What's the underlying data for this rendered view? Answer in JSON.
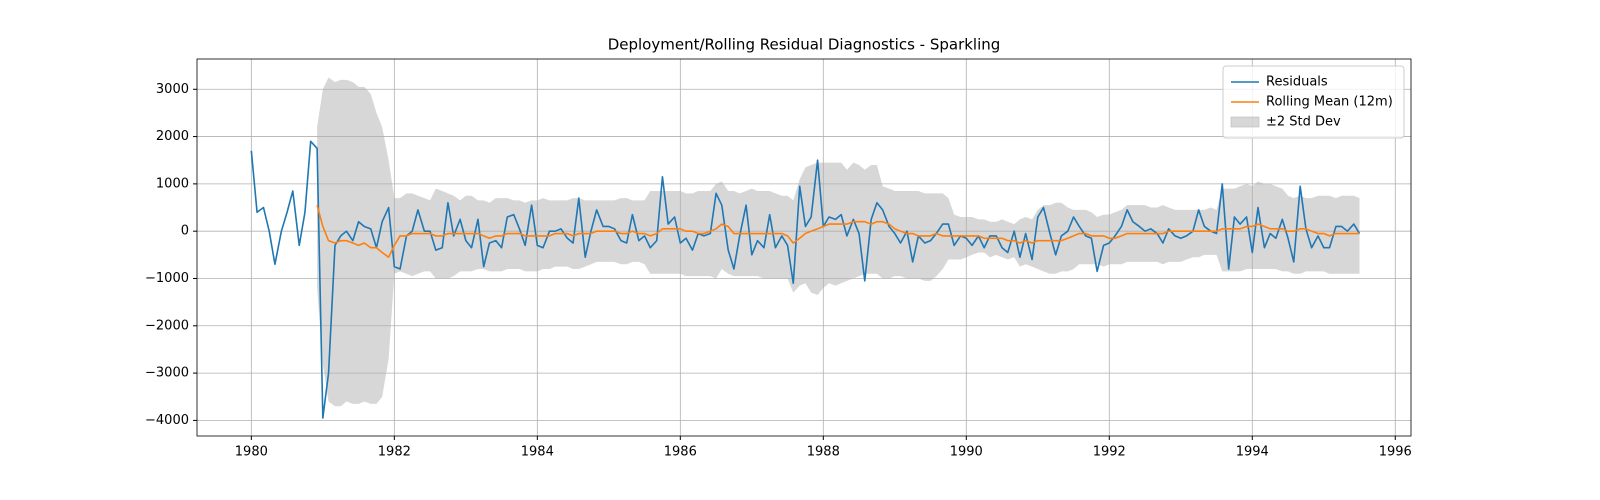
{
  "chart_data": {
    "type": "line",
    "title": "Deployment/Rolling Residual Diagnostics - Sparkling",
    "x": [
      1980.0,
      1980.08,
      1980.17,
      1980.25,
      1980.33,
      1980.42,
      1980.5,
      1980.58,
      1980.67,
      1980.75,
      1980.83,
      1980.92,
      1981.0,
      1981.08,
      1981.17,
      1981.25,
      1981.33,
      1981.42,
      1981.5,
      1981.58,
      1981.67,
      1981.75,
      1981.83,
      1981.92,
      1982.0,
      1982.08,
      1982.17,
      1982.25,
      1982.33,
      1982.42,
      1982.5,
      1982.58,
      1982.67,
      1982.75,
      1982.83,
      1982.92,
      1983.0,
      1983.08,
      1983.17,
      1983.25,
      1983.33,
      1983.42,
      1983.5,
      1983.58,
      1983.67,
      1983.75,
      1983.83,
      1983.92,
      1984.0,
      1984.08,
      1984.17,
      1984.25,
      1984.33,
      1984.42,
      1984.5,
      1984.58,
      1984.67,
      1984.75,
      1984.83,
      1984.92,
      1985.0,
      1985.08,
      1985.17,
      1985.25,
      1985.33,
      1985.42,
      1985.5,
      1985.58,
      1985.67,
      1985.75,
      1985.83,
      1985.92,
      1986.0,
      1986.08,
      1986.17,
      1986.25,
      1986.33,
      1986.42,
      1986.5,
      1986.58,
      1986.67,
      1986.75,
      1986.83,
      1986.92,
      1987.0,
      1987.08,
      1987.17,
      1987.25,
      1987.33,
      1987.42,
      1987.5,
      1987.58,
      1987.67,
      1987.75,
      1987.83,
      1987.92,
      1988.0,
      1988.08,
      1988.17,
      1988.25,
      1988.33,
      1988.42,
      1988.5,
      1988.58,
      1988.67,
      1988.75,
      1988.83,
      1988.92,
      1989.0,
      1989.08,
      1989.17,
      1989.25,
      1989.33,
      1989.42,
      1989.5,
      1989.58,
      1989.67,
      1989.75,
      1989.83,
      1989.92,
      1990.0,
      1990.08,
      1990.17,
      1990.25,
      1990.33,
      1990.42,
      1990.5,
      1990.58,
      1990.67,
      1990.75,
      1990.83,
      1990.92,
      1991.0,
      1991.08,
      1991.17,
      1991.25,
      1991.33,
      1991.42,
      1991.5,
      1991.58,
      1991.67,
      1991.75,
      1991.83,
      1991.92,
      1992.0,
      1992.08,
      1992.17,
      1992.25,
      1992.33,
      1992.42,
      1992.5,
      1992.58,
      1992.67,
      1992.75,
      1992.83,
      1992.92,
      1993.0,
      1993.08,
      1993.17,
      1993.25,
      1993.33,
      1993.42,
      1993.5,
      1993.58,
      1993.67,
      1993.75,
      1993.83,
      1993.92,
      1994.0,
      1994.08,
      1994.17,
      1994.25,
      1994.33,
      1994.42,
      1994.5,
      1994.58,
      1994.67,
      1994.75,
      1994.83,
      1994.92,
      1995.0,
      1995.08,
      1995.17,
      1995.25,
      1995.33,
      1995.42,
      1995.5
    ],
    "series": [
      {
        "name": "Residuals",
        "color": "#1f77b4",
        "values": [
          1700,
          400,
          500,
          0,
          -700,
          0,
          400,
          850,
          -300,
          400,
          1900,
          1750,
          -3950,
          -3000,
          -300,
          -100,
          0,
          -200,
          200,
          100,
          50,
          -350,
          200,
          500,
          -750,
          -800,
          -100,
          0,
          450,
          0,
          0,
          -400,
          -350,
          600,
          -100,
          250,
          -200,
          -350,
          250,
          -750,
          -250,
          -200,
          -350,
          300,
          350,
          50,
          -300,
          550,
          -300,
          -350,
          0,
          0,
          50,
          -150,
          -250,
          700,
          -550,
          0,
          450,
          100,
          100,
          50,
          -200,
          -250,
          350,
          -200,
          -100,
          -350,
          -200,
          1150,
          150,
          300,
          -250,
          -150,
          -400,
          -50,
          -100,
          -50,
          800,
          550,
          -400,
          -800,
          -100,
          550,
          -500,
          -200,
          -350,
          350,
          -350,
          -100,
          -300,
          -1100,
          950,
          100,
          300,
          1500,
          100,
          300,
          250,
          350,
          -100,
          250,
          -50,
          -1050,
          250,
          600,
          450,
          100,
          -50,
          -250,
          0,
          -650,
          -100,
          -250,
          -200,
          -50,
          150,
          150,
          -300,
          -100,
          -150,
          -300,
          -100,
          -350,
          -100,
          -100,
          -350,
          -450,
          0,
          -550,
          -50,
          -600,
          300,
          500,
          -50,
          -500,
          -100,
          0,
          300,
          100,
          -100,
          -150,
          -850,
          -300,
          -250,
          -100,
          100,
          450,
          200,
          100,
          0,
          50,
          -50,
          -250,
          50,
          -100,
          -150,
          -100,
          0,
          450,
          100,
          0,
          -50,
          1000,
          -800,
          300,
          150,
          300,
          -450,
          500,
          -350,
          -50,
          -150,
          250,
          -150,
          -650,
          950,
          50,
          -350,
          -100,
          -350,
          -350,
          100,
          100,
          0,
          150,
          -50
        ]
      },
      {
        "name": "Rolling Mean (12m)",
        "color": "#ff7f0e",
        "values": [
          null,
          null,
          null,
          null,
          null,
          null,
          null,
          null,
          null,
          null,
          null,
          550,
          100,
          -200,
          -250,
          -200,
          -200,
          -250,
          -300,
          -250,
          -350,
          -350,
          -450,
          -550,
          -300,
          -100,
          -100,
          -50,
          -50,
          -50,
          -50,
          -100,
          -100,
          -50,
          -50,
          -50,
          -50,
          -50,
          -50,
          -100,
          -150,
          -100,
          -100,
          -50,
          -50,
          -50,
          -100,
          -100,
          -100,
          -100,
          -100,
          -50,
          -50,
          -50,
          -100,
          -50,
          -50,
          -50,
          0,
          0,
          0,
          0,
          -50,
          -50,
          0,
          -50,
          -50,
          -100,
          -50,
          50,
          50,
          50,
          50,
          0,
          0,
          -50,
          -50,
          0,
          50,
          150,
          100,
          -50,
          -50,
          -50,
          -50,
          -50,
          -50,
          -50,
          -50,
          -50,
          -100,
          -250,
          -150,
          -50,
          0,
          50,
          100,
          150,
          150,
          150,
          150,
          200,
          200,
          200,
          150,
          200,
          200,
          150,
          50,
          0,
          -50,
          -50,
          -100,
          -100,
          -100,
          -50,
          -100,
          -100,
          -100,
          -100,
          -100,
          -100,
          -100,
          -150,
          -150,
          -150,
          -150,
          -200,
          -200,
          -250,
          -200,
          -250,
          -200,
          -200,
          -200,
          -200,
          -200,
          -150,
          -100,
          -50,
          -50,
          -100,
          -100,
          -100,
          -150,
          -150,
          -100,
          -50,
          -50,
          -50,
          -50,
          -50,
          -50,
          -50,
          0,
          0,
          0,
          0,
          0,
          0,
          0,
          0,
          0,
          50,
          50,
          50,
          50,
          100,
          100,
          150,
          100,
          50,
          50,
          50,
          0,
          0,
          50,
          50,
          0,
          -50,
          -50,
          -100,
          -50,
          -50,
          -50,
          -50,
          -50
        ]
      }
    ],
    "band": {
      "name": "±2 Std Dev",
      "color": "#b0b0b0",
      "upper": [
        null,
        null,
        null,
        null,
        null,
        null,
        null,
        null,
        null,
        null,
        null,
        2200,
        3000,
        3250,
        3150,
        3200,
        3200,
        3150,
        3050,
        3050,
        2900,
        2500,
        2200,
        1500,
        700,
        700,
        800,
        800,
        750,
        700,
        650,
        900,
        850,
        800,
        750,
        650,
        750,
        750,
        650,
        650,
        600,
        700,
        700,
        700,
        650,
        650,
        600,
        650,
        650,
        700,
        650,
        650,
        650,
        650,
        700,
        700,
        650,
        650,
        650,
        650,
        650,
        650,
        700,
        700,
        650,
        650,
        650,
        850,
        850,
        850,
        850,
        850,
        850,
        800,
        800,
        850,
        850,
        850,
        1000,
        1050,
        850,
        850,
        800,
        850,
        900,
        850,
        850,
        850,
        800,
        750,
        750,
        650,
        1100,
        1350,
        1400,
        1450,
        1450,
        1450,
        1450,
        1450,
        1300,
        1450,
        1400,
        1300,
        1400,
        1400,
        950,
        900,
        850,
        850,
        850,
        850,
        850,
        800,
        800,
        800,
        800,
        700,
        350,
        300,
        300,
        300,
        250,
        250,
        200,
        200,
        250,
        200,
        150,
        250,
        300,
        250,
        450,
        550,
        550,
        600,
        600,
        500,
        450,
        450,
        450,
        400,
        300,
        350,
        350,
        400,
        450,
        550,
        550,
        550,
        550,
        500,
        500,
        550,
        500,
        450,
        450,
        450,
        450,
        450,
        450,
        500,
        450,
        900,
        900,
        900,
        950,
        1000,
        950,
        1050,
        1000,
        1000,
        950,
        900,
        750,
        700,
        750,
        700,
        700,
        750,
        750,
        750,
        700,
        750,
        750,
        750,
        700
      ],
      "lower": [
        null,
        null,
        null,
        null,
        null,
        null,
        null,
        null,
        null,
        null,
        null,
        -1200,
        -2800,
        -3600,
        -3700,
        -3700,
        -3600,
        -3650,
        -3650,
        -3600,
        -3650,
        -3650,
        -3500,
        -2700,
        -900,
        -850,
        -900,
        -950,
        -900,
        -850,
        -850,
        -1000,
        -1000,
        -1000,
        -950,
        -850,
        -850,
        -850,
        -800,
        -800,
        -850,
        -850,
        -850,
        -800,
        -800,
        -800,
        -850,
        -850,
        -850,
        -800,
        -800,
        -750,
        -750,
        -750,
        -800,
        -800,
        -750,
        -700,
        -650,
        -650,
        -650,
        -650,
        -700,
        -700,
        -650,
        -650,
        -700,
        -900,
        -900,
        -900,
        -900,
        -900,
        -900,
        -950,
        -950,
        -950,
        -950,
        -950,
        -1000,
        -800,
        -900,
        -950,
        -950,
        -950,
        -950,
        -950,
        -1000,
        -1000,
        -1000,
        -1000,
        -1000,
        -1300,
        -1150,
        -1100,
        -1300,
        -1350,
        -1200,
        -1100,
        -1150,
        -1100,
        -1050,
        -1000,
        -950,
        -900,
        -900,
        -900,
        -1000,
        -1000,
        -950,
        -950,
        -1000,
        -1000,
        -1000,
        -1050,
        -1050,
        -950,
        -800,
        -600,
        -600,
        -600,
        -550,
        -500,
        -450,
        -450,
        -550,
        -500,
        -550,
        -600,
        -550,
        -750,
        -700,
        -750,
        -800,
        -850,
        -900,
        -900,
        -850,
        -850,
        -800,
        -700,
        -700,
        -700,
        -700,
        -750,
        -700,
        -700,
        -700,
        -650,
        -650,
        -650,
        -650,
        -650,
        -650,
        -700,
        -650,
        -650,
        -650,
        -600,
        -550,
        -550,
        -500,
        -500,
        -500,
        -850,
        -850,
        -850,
        -850,
        -800,
        -800,
        -800,
        -800,
        -800,
        -800,
        -850,
        -850,
        -900,
        -900,
        -850,
        -850,
        -850,
        -850,
        -900,
        -900,
        -900,
        -900,
        -900,
        -900
      ]
    },
    "xlim": [
      1979.24,
      1996.22
    ],
    "ylim": [
      -4330,
      3640
    ],
    "xticks": [
      1980,
      1982,
      1984,
      1986,
      1988,
      1990,
      1992,
      1994,
      1996
    ],
    "yticks": [
      {
        "value": -4000,
        "label": "−4000"
      },
      {
        "value": -3000,
        "label": "−3000"
      },
      {
        "value": -2000,
        "label": "−2000"
      },
      {
        "value": -1000,
        "label": "−1000"
      },
      0,
      1000,
      2000,
      3000
    ],
    "grid": true,
    "legend": "upper right"
  }
}
